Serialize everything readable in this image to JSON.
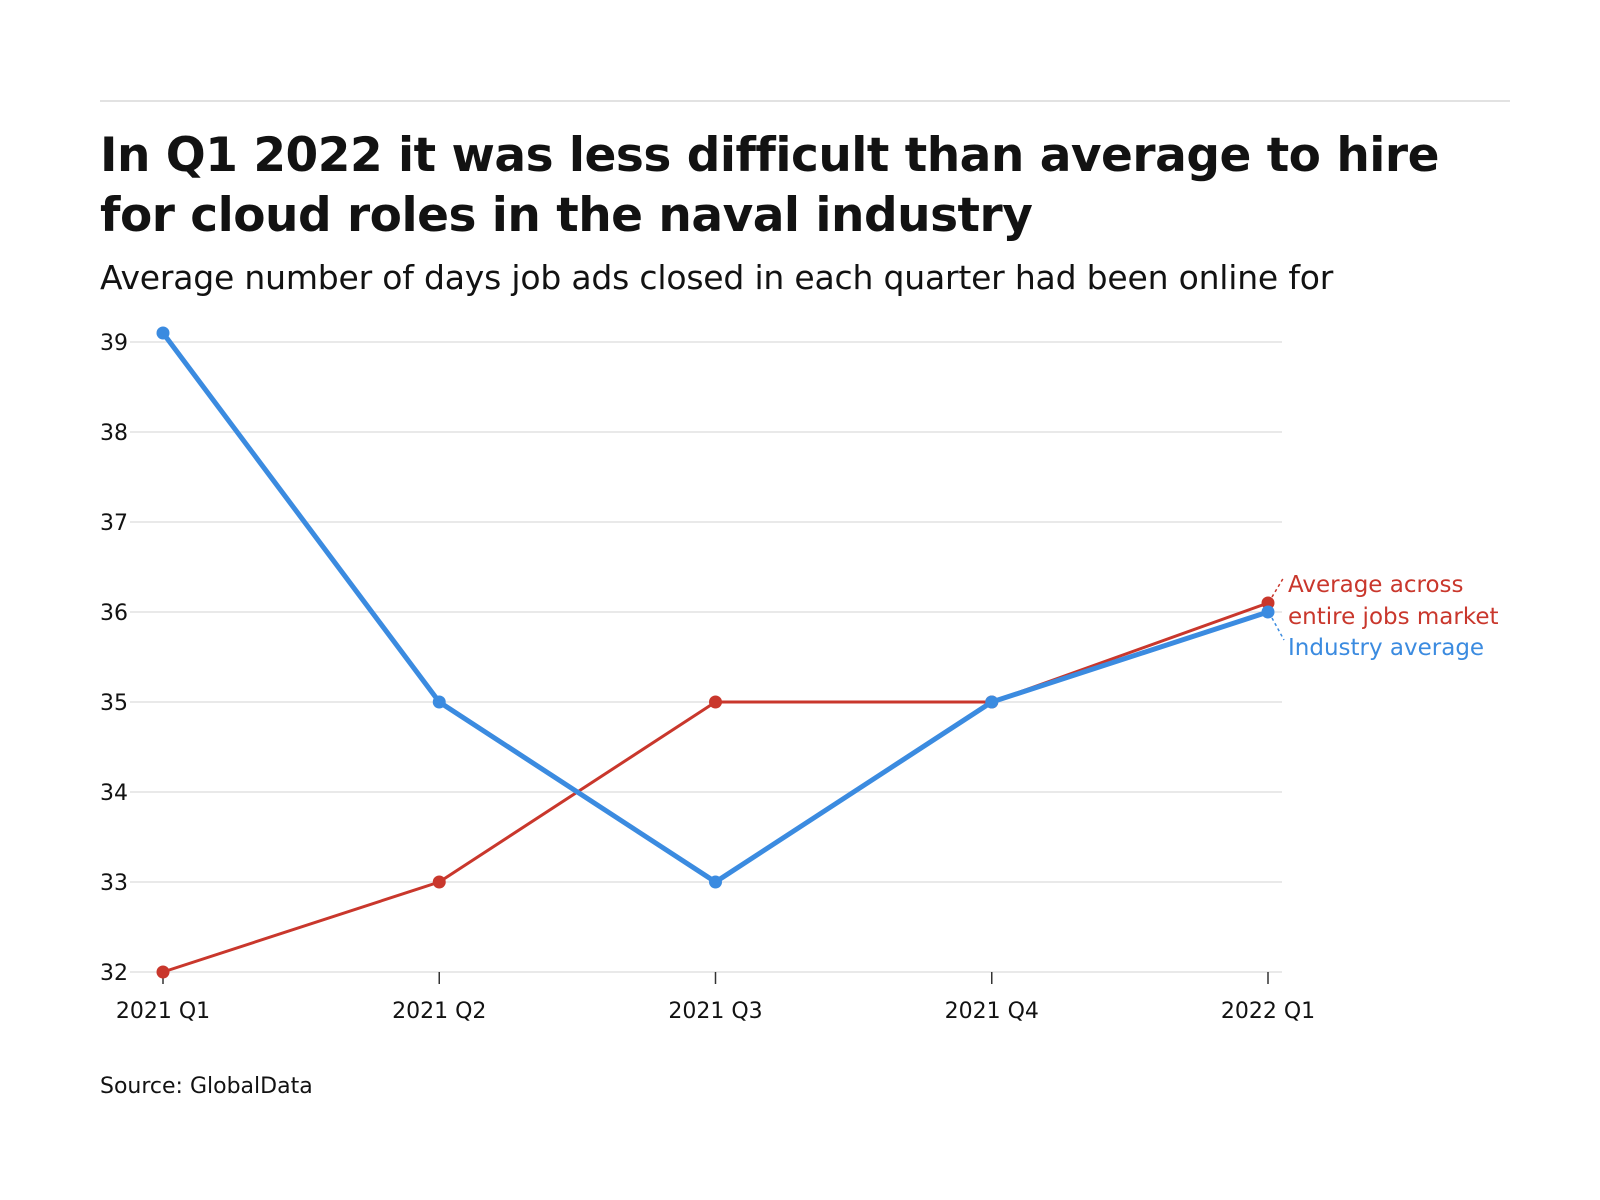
{
  "header": {
    "title": "In Q1 2022 it was less difficult than average to hire for cloud roles in the naval industry",
    "subtitle": "Average number of days job ads closed in each quarter had been online for"
  },
  "footer": {
    "source": "Source: GlobalData"
  },
  "colors": {
    "industry": "#3b8be0",
    "market": "#c9372c",
    "grid": "#e2e2e2",
    "axis_text": "#121212"
  },
  "chart_data": {
    "type": "line",
    "title": "In Q1 2022 it was less difficult than average to hire for cloud roles in the naval industry",
    "subtitle": "Average number of days job ads closed in each quarter had been online for",
    "categories": [
      "2021 Q1",
      "2021 Q2",
      "2021 Q3",
      "2021 Q4",
      "2022 Q1"
    ],
    "series": [
      {
        "name": "Industry average",
        "color": "#3b8be0",
        "values": [
          39.1,
          35,
          33,
          35,
          36
        ]
      },
      {
        "name": "Average across entire jobs market",
        "label_lines": [
          "Average across",
          "entire jobs market"
        ],
        "color": "#c9372c",
        "values": [
          32,
          33,
          35,
          35,
          36.1
        ]
      }
    ],
    "y_ticks": [
      32,
      33,
      34,
      35,
      36,
      37,
      38,
      39
    ],
    "ylim": [
      32,
      39.1
    ],
    "xlabel": "",
    "ylabel": "",
    "grid": true,
    "legend": "direct-labels-right"
  }
}
